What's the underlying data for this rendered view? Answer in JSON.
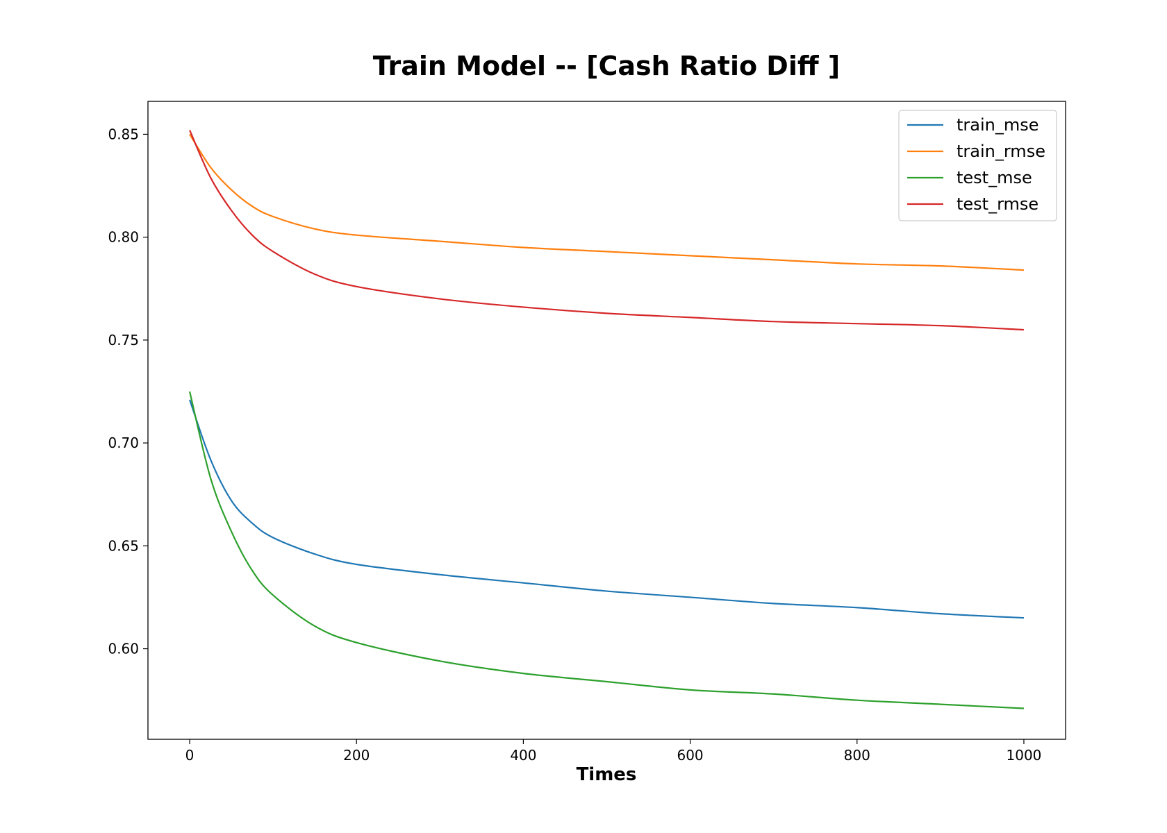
{
  "chart_data": {
    "type": "line",
    "title": "Train Model -- [Cash Ratio Diff ]",
    "xlabel": "Times",
    "ylabel": "",
    "xlim": [
      -50,
      1050
    ],
    "ylim": [
      0.556,
      0.866
    ],
    "xticks": [
      0,
      200,
      400,
      600,
      800,
      1000
    ],
    "yticks": [
      0.6,
      0.65,
      0.7,
      0.75,
      0.8,
      0.85
    ],
    "ytick_labels": [
      "0.60",
      "0.65",
      "0.70",
      "0.75",
      "0.80",
      "0.85"
    ],
    "grid": false,
    "legend_position": "top-right",
    "x": [
      0,
      25,
      50,
      75,
      100,
      150,
      200,
      300,
      400,
      500,
      600,
      700,
      800,
      900,
      1000
    ],
    "series": [
      {
        "name": "train_mse",
        "color": "#1f77b4",
        "values": [
          0.721,
          0.692,
          0.672,
          0.661,
          0.654,
          0.646,
          0.641,
          0.636,
          0.632,
          0.628,
          0.625,
          0.622,
          0.62,
          0.617,
          0.615
        ]
      },
      {
        "name": "train_rmse",
        "color": "#ff7f0e",
        "values": [
          0.85,
          0.834,
          0.823,
          0.815,
          0.81,
          0.804,
          0.801,
          0.798,
          0.795,
          0.793,
          0.791,
          0.789,
          0.787,
          0.786,
          0.784
        ]
      },
      {
        "name": "test_mse",
        "color": "#2ca02c",
        "values": [
          0.725,
          0.683,
          0.657,
          0.638,
          0.626,
          0.611,
          0.603,
          0.594,
          0.588,
          0.584,
          0.58,
          0.578,
          0.575,
          0.573,
          0.571
        ]
      },
      {
        "name": "test_rmse",
        "color": "#d62728",
        "values": [
          0.852,
          0.829,
          0.813,
          0.801,
          0.793,
          0.782,
          0.776,
          0.77,
          0.766,
          0.763,
          0.761,
          0.759,
          0.758,
          0.757,
          0.755
        ]
      }
    ]
  }
}
